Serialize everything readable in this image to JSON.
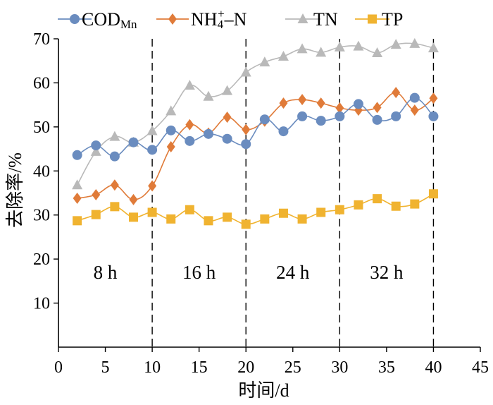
{
  "chart_data": {
    "type": "line",
    "xlabel": "时间/d",
    "ylabel": "去除率/%",
    "xlim": [
      0,
      45
    ],
    "ylim": [
      0,
      70
    ],
    "xticks": [
      0,
      5,
      10,
      15,
      20,
      25,
      30,
      35,
      40,
      45
    ],
    "yticks": [
      10,
      20,
      30,
      40,
      50,
      60,
      70
    ],
    "grid": false,
    "legend_position": "top",
    "x": [
      2,
      4,
      6,
      8,
      10,
      12,
      14,
      16,
      18,
      20,
      22,
      24,
      26,
      28,
      30,
      32,
      34,
      36,
      38,
      40
    ],
    "series": [
      {
        "name": "CODMn",
        "legend": {
          "main": "COD",
          "sub": "Mn"
        },
        "color": "#6a8cbf",
        "marker": "circle",
        "values": [
          43.6,
          45.8,
          43.3,
          46.5,
          44.8,
          49.2,
          46.8,
          48.4,
          47.3,
          46.1,
          51.7,
          49.0,
          52.4,
          51.4,
          52.4,
          55.2,
          51.6,
          52.4,
          56.6,
          52.4
        ]
      },
      {
        "name": "NH4+–N",
        "legend": {
          "main": "NH",
          "sub": "4",
          "sup": "+",
          "tail": "–N"
        },
        "color": "#e07b39",
        "marker": "diamond",
        "values": [
          33.8,
          34.6,
          36.8,
          33.5,
          36.6,
          45.5,
          50.5,
          48.6,
          52.2,
          49.4,
          51.3,
          55.4,
          56.2,
          55.4,
          54.3,
          53.8,
          54.4,
          57.8,
          53.8,
          56.5
        ]
      },
      {
        "name": "TN",
        "legend": {
          "main": "TN"
        },
        "color": "#b9b9b9",
        "marker": "triangle",
        "values": [
          36.8,
          44.4,
          47.8,
          46.5,
          49.1,
          53.6,
          59.4,
          56.9,
          58.2,
          62.4,
          64.7,
          66.0,
          67.7,
          66.9,
          68.1,
          68.3,
          66.8,
          68.7,
          68.9,
          67.9
        ]
      },
      {
        "name": "TP",
        "legend": {
          "main": "TP"
        },
        "color": "#f0b330",
        "marker": "square",
        "values": [
          28.7,
          30.1,
          31.9,
          29.5,
          30.6,
          29.1,
          31.2,
          28.7,
          29.5,
          27.9,
          29.1,
          30.4,
          29.1,
          30.6,
          31.2,
          32.3,
          33.7,
          32.0,
          32.5,
          34.8
        ]
      }
    ],
    "dividers_x": [
      10,
      20,
      30,
      40
    ],
    "periods": [
      {
        "label": "8 h",
        "x": 5
      },
      {
        "label": "16 h",
        "x": 15
      },
      {
        "label": "24 h",
        "x": 25
      },
      {
        "label": "32 h",
        "x": 35
      }
    ],
    "period_label_y": 17
  }
}
